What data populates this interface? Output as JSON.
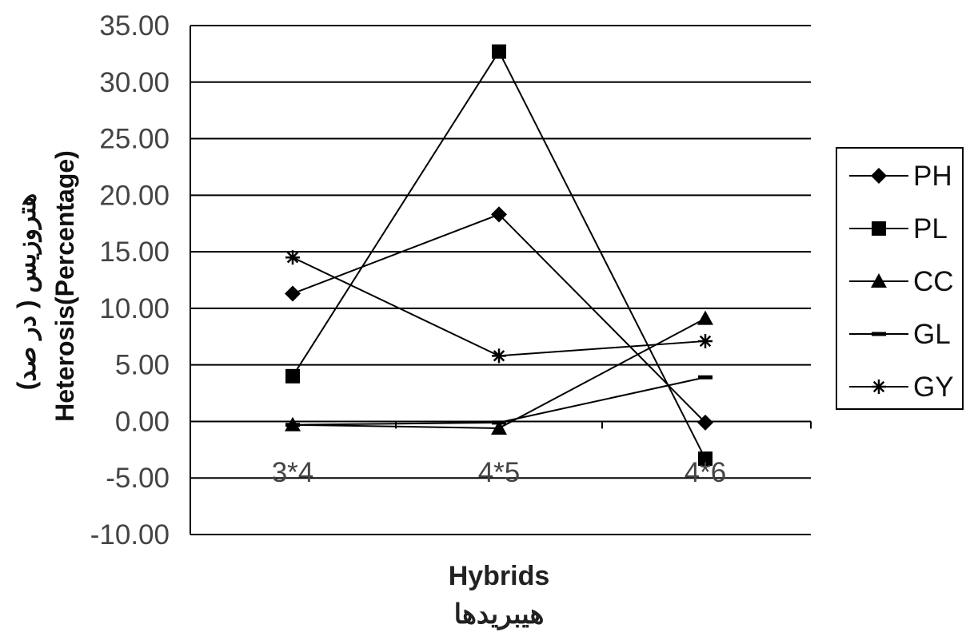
{
  "chart_data": {
    "type": "line",
    "categories": [
      "3*4",
      "4*5",
      "4*6"
    ],
    "series": [
      {
        "name": "PH",
        "values": [
          11.3,
          18.3,
          -0.1
        ],
        "marker": "diamond"
      },
      {
        "name": "PL",
        "values": [
          4.0,
          32.7,
          -3.3
        ],
        "marker": "square"
      },
      {
        "name": "CC",
        "values": [
          -0.3,
          -0.6,
          9.1
        ],
        "marker": "triangle"
      },
      {
        "name": "GL",
        "values": [
          -0.3,
          -0.1,
          3.9
        ],
        "marker": "dash"
      },
      {
        "name": "GY",
        "values": [
          14.5,
          5.8,
          7.1
        ],
        "marker": "star"
      }
    ],
    "yticks": [
      "35.00",
      "30.00",
      "25.00",
      "20.00",
      "15.00",
      "10.00",
      "5.00",
      "0.00",
      "-5.00",
      "-10.00"
    ],
    "ylim": [
      -10,
      35
    ],
    "ylabel_line1": "هتروزیس ( در صد)",
    "ylabel_line2": "Heterosis(Percentage)",
    "xlabel_line1": "Hybrids",
    "xlabel_line2": "هیبریدها",
    "grid": true,
    "legend_position": "right",
    "line_color": "#000000"
  }
}
